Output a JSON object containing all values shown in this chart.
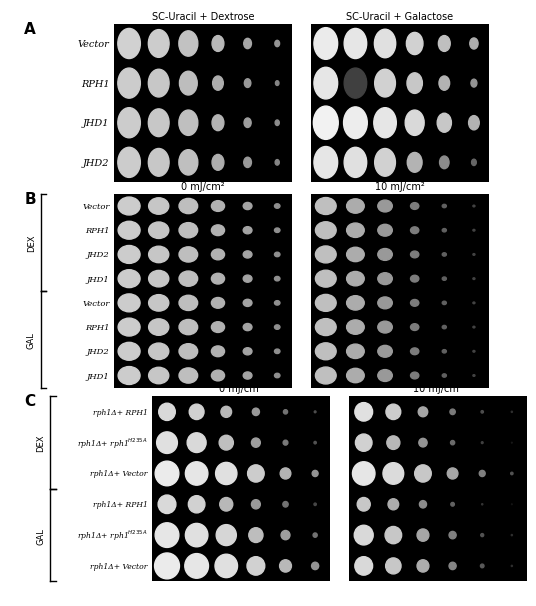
{
  "fig_width": 4.74,
  "fig_height": 5.87,
  "panel_A": {
    "label": "A",
    "row_labels": [
      "Vector",
      "RPH1",
      "JHD1",
      "JHD2"
    ],
    "col_label_left": "SC-Uracil + Dextrose",
    "col_label_right": "SC-Uracil + Galactose"
  },
  "panel_B": {
    "label": "B",
    "col_labels": [
      "0 mJ/cm²",
      "10 mJ/cm²"
    ],
    "dex_labels": [
      "Vector",
      "RPH1",
      "JHD2",
      "JHD1"
    ],
    "gal_labels": [
      "Vector",
      "RPH1",
      "JHD2",
      "JHD1"
    ]
  },
  "panel_C": {
    "label": "C",
    "col_labels": [
      "0 mJ/cm²",
      "10 mJ/cm²"
    ],
    "dex_labels": [
      "rph1Δ+ RPH1",
      "rph1Δ+ rph1ᴴ²³⁵ᴬ",
      "rph1Δ+ Vector"
    ],
    "gal_labels": [
      "rph1Δ+ RPH1",
      "rph1Δ+ rph1ᴴ²³⁵ᴬ",
      "rph1Δ+ Vector"
    ]
  }
}
